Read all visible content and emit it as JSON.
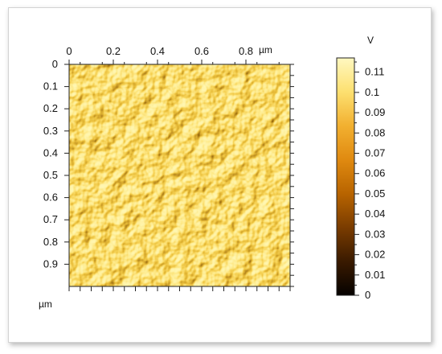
{
  "chart_data": {
    "type": "heatmap",
    "title": "",
    "description_units": {
      "x_unit": "µm",
      "y_unit": "µm",
      "colorbar_unit": "V"
    },
    "x_ticks": [
      "0",
      "0.2",
      "0.4",
      "0.6",
      "0.8"
    ],
    "y_ticks": [
      "0",
      "0.1",
      "0.2",
      "0.3",
      "0.4",
      "0.5",
      "0.6",
      "0.7",
      "0.8",
      "0.9"
    ],
    "xlim": [
      0,
      1.0
    ],
    "ylim": [
      0,
      1.0
    ],
    "colorbar": {
      "ticks": [
        "0",
        "0.01",
        "0.02",
        "0.03",
        "0.04",
        "0.05",
        "0.06",
        "0.07",
        "0.08",
        "0.09",
        "0.1",
        "0.11"
      ],
      "range": [
        0,
        0.117
      ],
      "colors": [
        "#050200",
        "#3a1a00",
        "#7a3c00",
        "#b86400",
        "#e08a10",
        "#f2b030",
        "#fde070",
        "#fff8c0"
      ]
    }
  }
}
